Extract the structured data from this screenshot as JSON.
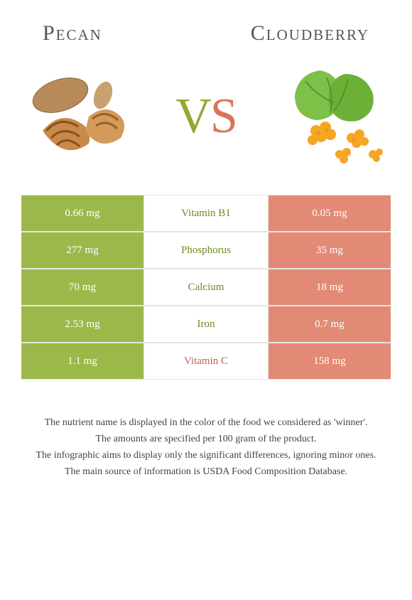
{
  "colors": {
    "left_food": "#8fa933",
    "right_food": "#d9735a",
    "left_bg": "#9db84a",
    "right_bg": "#e28a75",
    "mid_left_text": "#6b8a1f",
    "mid_right_text": "#c76048",
    "cell_text": "#ffffff",
    "border": "#e5e5e5"
  },
  "header": {
    "left_title": "Pecan",
    "right_title": "Cloudberry"
  },
  "vs": {
    "v": "V",
    "s": "S"
  },
  "rows": [
    {
      "left": "0.66 mg",
      "label": "Vitamin B1",
      "right": "0.05 mg",
      "winner": "left"
    },
    {
      "left": "277 mg",
      "label": "Phosphorus",
      "right": "35 mg",
      "winner": "left"
    },
    {
      "left": "70 mg",
      "label": "Calcium",
      "right": "18 mg",
      "winner": "left"
    },
    {
      "left": "2.53 mg",
      "label": "Iron",
      "right": "0.7 mg",
      "winner": "left"
    },
    {
      "left": "1.1 mg",
      "label": "Vitamin C",
      "right": "158 mg",
      "winner": "right"
    }
  ],
  "footer": {
    "l1": "The nutrient name is displayed in the color of the food we considered as 'winner'.",
    "l2": "The amounts are specified per 100 gram of the product.",
    "l3": "The infographic aims to display only the significant differences, ignoring minor ones.",
    "l4": "The main source of information is USDA Food Composition Database."
  }
}
